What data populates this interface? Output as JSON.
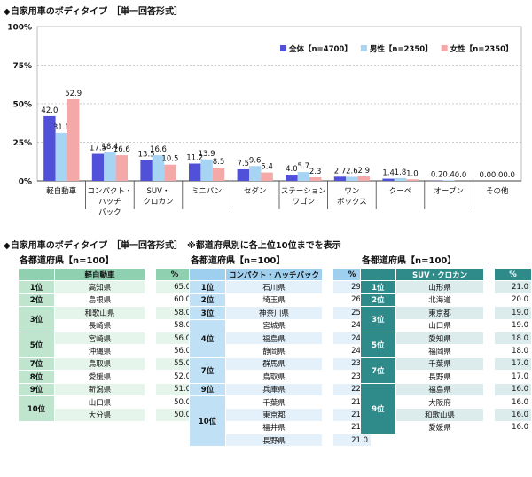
{
  "chart_title": "◆自家用車のボディタイプ　［単一回答形式］",
  "section_title": "◆自家用車のボディタイプ　［単一回答形式］　※都道府県別に各上位10位までを表示",
  "colors": {
    "all": "#5050d8",
    "male": "#a8d4f4",
    "female": "#f4a8a8",
    "grid": "#bdbdbd",
    "axis": "#444444"
  },
  "chart_data": {
    "type": "bar",
    "categories": [
      [
        "軽自動車"
      ],
      [
        "コンパクト・",
        "ハッチ",
        "バック"
      ],
      [
        "SUV・",
        "クロカン"
      ],
      [
        "ミニバン"
      ],
      [
        "セダン"
      ],
      [
        "ステーション",
        "ワゴン"
      ],
      [
        "ワン",
        "ボックス"
      ],
      [
        "クーペ"
      ],
      [
        "オープン"
      ],
      [
        "その他"
      ]
    ],
    "series": [
      {
        "name": "全体【n=4700】",
        "color": "#5050d8",
        "values": [
          42.0,
          17.5,
          13.5,
          11.2,
          7.5,
          4.0,
          2.7,
          1.4,
          0.2,
          0.0
        ]
      },
      {
        "name": "男性【n=2350】",
        "color": "#a8d4f4",
        "values": [
          31.1,
          18.4,
          16.6,
          13.9,
          9.6,
          5.7,
          2.6,
          1.8,
          0.4,
          0.0
        ]
      },
      {
        "name": "女性【n=2350】",
        "color": "#f4a8a8",
        "values": [
          52.9,
          16.6,
          10.5,
          8.5,
          5.4,
          2.3,
          2.9,
          1.0,
          0.0,
          0.0
        ]
      }
    ],
    "ylim": [
      0,
      100
    ],
    "yticks": [
      "0%",
      "25%",
      "50%",
      "75%",
      "100%"
    ],
    "grid": true,
    "legend": "top-right"
  },
  "tables": [
    {
      "title": "各都道府県【n=100】",
      "header": "軽自動車",
      "pct_header": "%",
      "theme": {
        "head": "#8fd0b0",
        "odd": "#e6f5ec",
        "even": "#ffffff",
        "rank": "#bfe5cf",
        "text": "#111111"
      },
      "groups": [
        {
          "rank": "1位",
          "rows": [
            [
              "高知県",
              "65.0"
            ]
          ]
        },
        {
          "rank": "2位",
          "rows": [
            [
              "島根県",
              "60.0"
            ]
          ]
        },
        {
          "rank": "3位",
          "rows": [
            [
              "和歌山県",
              "58.0"
            ],
            [
              "長崎県",
              "58.0"
            ]
          ]
        },
        {
          "rank": "5位",
          "rows": [
            [
              "宮崎県",
              "56.0"
            ],
            [
              "沖縄県",
              "56.0"
            ]
          ]
        },
        {
          "rank": "7位",
          "rows": [
            [
              "鳥取県",
              "55.0"
            ]
          ]
        },
        {
          "rank": "8位",
          "rows": [
            [
              "愛媛県",
              "52.0"
            ]
          ]
        },
        {
          "rank": "9位",
          "rows": [
            [
              "新潟県",
              "51.0"
            ]
          ]
        },
        {
          "rank": "10位",
          "rows": [
            [
              "山口県",
              "50.0"
            ],
            [
              "大分県",
              "50.0"
            ]
          ]
        }
      ]
    },
    {
      "title": "各都道府県【n=100】",
      "header": "コンパクト・ハッチバック",
      "pct_header": "%",
      "theme": {
        "head": "#9fcfef",
        "odd": "#e4f1fb",
        "even": "#ffffff",
        "rank": "#bfe0f5",
        "text": "#111111"
      },
      "groups": [
        {
          "rank": "1位",
          "rows": [
            [
              "石川県",
              "29.0"
            ]
          ]
        },
        {
          "rank": "2位",
          "rows": [
            [
              "埼玉県",
              "26.0"
            ]
          ]
        },
        {
          "rank": "3位",
          "rows": [
            [
              "神奈川県",
              "25.0"
            ]
          ]
        },
        {
          "rank": "4位",
          "rows": [
            [
              "宮城県",
              "24.0"
            ],
            [
              "福島県",
              "24.0"
            ],
            [
              "静岡県",
              "24.0"
            ]
          ]
        },
        {
          "rank": "7位",
          "rows": [
            [
              "群馬県",
              "23.0"
            ],
            [
              "鳥取県",
              "23.0"
            ]
          ]
        },
        {
          "rank": "9位",
          "rows": [
            [
              "兵庫県",
              "22.0"
            ]
          ]
        },
        {
          "rank": "10位",
          "rows": [
            [
              "千葉県",
              "21.0"
            ],
            [
              "東京都",
              "21.0"
            ],
            [
              "福井県",
              "21.0"
            ],
            [
              "長野県",
              "21.0"
            ]
          ]
        }
      ]
    },
    {
      "title": "各都道府県【n=100】",
      "header": "SUV・クロカン",
      "pct_header": "%",
      "theme": {
        "head": "#2f8a8a",
        "odd": "#dcecec",
        "even": "#ffffff",
        "rank": "#2f8a8a",
        "text": "#111111"
      },
      "groups": [
        {
          "rank": "1位",
          "rows": [
            [
              "山形県",
              "21.0"
            ]
          ]
        },
        {
          "rank": "2位",
          "rows": [
            [
              "北海道",
              "20.0"
            ]
          ]
        },
        {
          "rank": "3位",
          "rows": [
            [
              "東京都",
              "19.0"
            ],
            [
              "山口県",
              "19.0"
            ]
          ]
        },
        {
          "rank": "5位",
          "rows": [
            [
              "愛知県",
              "18.0"
            ],
            [
              "福岡県",
              "18.0"
            ]
          ]
        },
        {
          "rank": "7位",
          "rows": [
            [
              "千葉県",
              "17.0"
            ],
            [
              "長野県",
              "17.0"
            ]
          ]
        },
        {
          "rank": "9位",
          "rows": [
            [
              "福島県",
              "16.0"
            ],
            [
              "大阪府",
              "16.0"
            ],
            [
              "和歌山県",
              "16.0"
            ],
            [
              "愛媛県",
              "16.0"
            ]
          ]
        }
      ]
    }
  ]
}
